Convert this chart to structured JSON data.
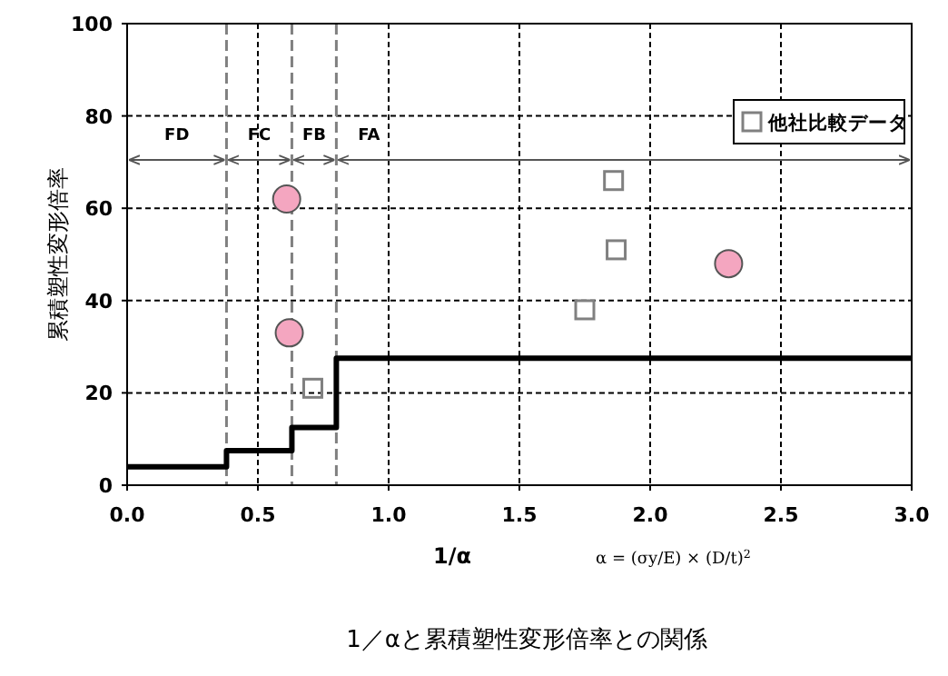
{
  "chart_data": {
    "type": "scatter",
    "title": "1／αと累積塑性変形倍率との関係",
    "xlabel": "1/α",
    "ylabel": "累積塑性変形倍率",
    "xlim": [
      0,
      3
    ],
    "ylim": [
      0,
      100
    ],
    "xticks": [
      {
        "value": 0,
        "label": "0.0"
      },
      0.5,
      {
        "value": 1,
        "label": "1.0"
      },
      1.5,
      {
        "value": 2,
        "label": "2.0"
      },
      2.5,
      {
        "value": 3,
        "label": "3.0"
      }
    ],
    "yticks": [
      0,
      20,
      40,
      60,
      80,
      100
    ],
    "grid": true,
    "legend": "top right",
    "series": [
      {
        "marker": "circle",
        "color": "#f4a6c0",
        "x": [
          0.61,
          0.62,
          2.3
        ],
        "values": [
          62,
          33,
          48
        ]
      },
      {
        "marker": "square",
        "name": "他社比較データ",
        "color": "#808080",
        "x": [
          0.71,
          1.86,
          1.87,
          1.75
        ],
        "values": [
          21,
          66,
          51,
          38
        ]
      },
      {
        "type": "step",
        "marker": "none",
        "color": "#000000",
        "x": [
          0,
          0.38,
          0.63,
          0.8,
          3
        ],
        "values": [
          4,
          7.5,
          12.5,
          27.5,
          27.5
        ]
      }
    ],
    "ref_lines": [
      {
        "axis": "x",
        "value": 0.38,
        "line_style": "dashed",
        "color": "#808080"
      },
      {
        "axis": "x",
        "value": 0.63,
        "line_style": "dashed",
        "color": "#808080"
      },
      {
        "axis": "x",
        "value": 0.8,
        "line_style": "dashed",
        "color": "#808080"
      }
    ],
    "annotations": [
      "FD",
      "FC",
      "FB",
      "FA",
      "α = (σy/E) × (D/t)$^{2}$"
    ]
  }
}
